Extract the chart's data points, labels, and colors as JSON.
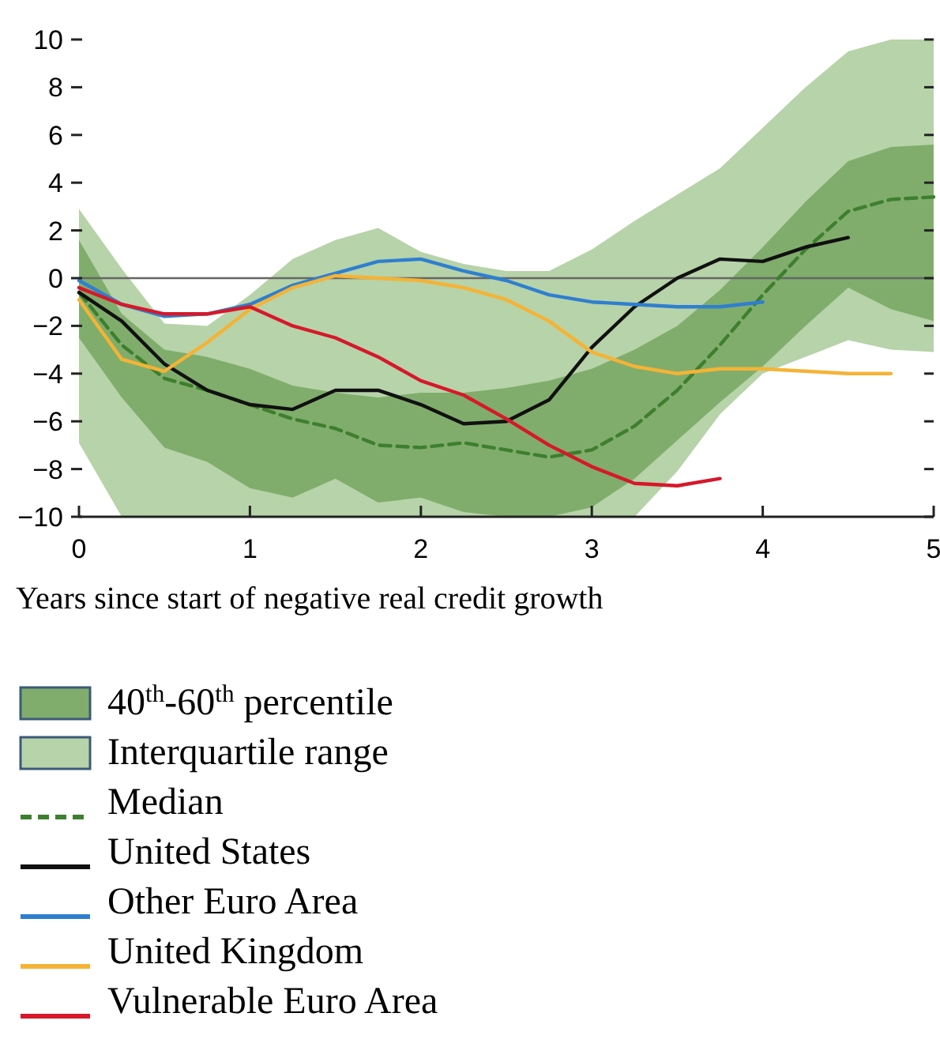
{
  "chart_data": {
    "type": "line",
    "xlabel": "Years since start of negative real credit growth",
    "x": [
      0,
      0.25,
      0.5,
      0.75,
      1,
      1.25,
      1.5,
      1.75,
      2,
      2.25,
      2.5,
      2.75,
      3,
      3.25,
      3.5,
      3.75,
      4,
      4.25,
      4.5,
      4.75,
      5
    ],
    "xlim": [
      0,
      5
    ],
    "xticks": [
      0,
      1,
      2,
      3,
      4,
      5
    ],
    "ylim": [
      -10,
      10
    ],
    "yticks": [
      {
        "value": -10,
        "label": "−10"
      },
      {
        "value": -8,
        "label": "−8"
      },
      {
        "value": -6,
        "label": "−6"
      },
      {
        "value": -4,
        "label": "−4"
      },
      {
        "value": -2,
        "label": "−2"
      },
      0,
      2,
      4,
      6,
      8,
      10
    ],
    "series": [
      {
        "name": "40$^{th}$-60$^{th}$ percentile",
        "color": "#80ad6c",
        "values": [
          null,
          null,
          null,
          null,
          null,
          null,
          null,
          null,
          null,
          null,
          null,
          null,
          null,
          null,
          null,
          null,
          null,
          null,
          null,
          null,
          null
        ],
        "lower": [
          -2.5,
          -5,
          -7.1,
          -7.7,
          -8.8,
          -9.2,
          -8.4,
          -9.4,
          -9.2,
          -9.8,
          -10,
          -10,
          -9.6,
          -8.4,
          -6.8,
          -5.2,
          -3.7,
          -2,
          -0.4,
          -1.3,
          -1.8
        ],
        "upper": [
          1.6,
          -1.5,
          -3.0,
          -3.3,
          -3.8,
          -4.5,
          -4.8,
          -5.0,
          -4.8,
          -4.8,
          -4.6,
          -4.3,
          -3.8,
          -3.0,
          -2.0,
          -0.5,
          1.3,
          3.2,
          4.9,
          5.5,
          5.6
        ]
      },
      {
        "name": "Interquartile range",
        "color": "#b7d3a9",
        "values": [
          null,
          null,
          null,
          null,
          null,
          null,
          null,
          null,
          null,
          null,
          null,
          null,
          null,
          null,
          null,
          null,
          null,
          null,
          null,
          null,
          null
        ],
        "lower": [
          -6.9,
          -10,
          -10,
          -10,
          -10,
          -10,
          -10,
          -10,
          -10,
          -10,
          -10,
          -10,
          -10,
          -10,
          -8.1,
          -5.7,
          -4.0,
          -3.3,
          -2.6,
          -3.0,
          -3.1
        ],
        "upper": [
          2.9,
          0.4,
          -1.9,
          -2.0,
          -0.7,
          0.8,
          1.6,
          2.1,
          1.1,
          0.6,
          0.3,
          0.3,
          1.2,
          2.4,
          3.5,
          4.6,
          6.3,
          8,
          9.5,
          10,
          10
        ]
      },
      {
        "name": "Median",
        "color": "#3d7f2e",
        "line_style": "dashed",
        "values": [
          -0.6,
          -2.8,
          -4.2,
          -4.7,
          -5.3,
          -5.9,
          -6.3,
          -7.0,
          -7.1,
          -6.9,
          -7.2,
          -7.5,
          -7.2,
          -6.2,
          -4.7,
          -2.8,
          -0.7,
          1.2,
          2.8,
          3.3,
          3.4
        ]
      },
      {
        "name": "United States",
        "color": "#111111",
        "x": [
          0,
          0.25,
          0.5,
          0.75,
          1,
          1.25,
          1.5,
          1.75,
          2,
          2.25,
          2.5,
          2.75,
          3,
          3.25,
          3.5,
          3.75,
          4,
          4.25,
          4.5
        ],
        "values": [
          -0.6,
          -1.8,
          -3.6,
          -4.7,
          -5.3,
          -5.5,
          -4.7,
          -4.7,
          -5.3,
          -6.1,
          -6.0,
          -5.1,
          -2.9,
          -1.2,
          0,
          0.8,
          0.7,
          1.3,
          1.7
        ]
      },
      {
        "name": "Other Euro Area",
        "color": "#2f7fd0",
        "x": [
          0,
          0.25,
          0.5,
          0.75,
          1,
          1.25,
          1.5,
          1.75,
          2,
          2.25,
          2.5,
          2.75,
          3,
          3.25,
          3.5,
          3.75,
          4
        ],
        "values": [
          -0.1,
          -1.1,
          -1.6,
          -1.5,
          -1.1,
          -0.3,
          0.2,
          0.7,
          0.8,
          0.3,
          -0.1,
          -0.7,
          -1.0,
          -1.1,
          -1.2,
          -1.2,
          -1.0
        ]
      },
      {
        "name": "United Kingdom",
        "color": "#f5b335",
        "x": [
          0,
          0.25,
          0.5,
          0.75,
          1,
          1.25,
          1.5,
          1.75,
          2,
          2.25,
          2.5,
          2.75,
          3,
          3.25,
          3.5,
          3.75,
          4,
          4.25,
          4.5,
          4.75
        ],
        "values": [
          -0.9,
          -3.4,
          -3.9,
          -2.7,
          -1.3,
          -0.4,
          0.1,
          0.0,
          -0.1,
          -0.4,
          -0.9,
          -1.8,
          -3.1,
          -3.7,
          -4.0,
          -3.8,
          -3.8,
          -3.9,
          -4.0,
          -4.0
        ]
      },
      {
        "name": "Vulnerable Euro Area",
        "color": "#d7182a",
        "x": [
          0,
          0.25,
          0.5,
          0.75,
          1,
          1.25,
          1.5,
          1.75,
          2,
          2.25,
          2.5,
          2.75,
          3,
          3.25,
          3.5,
          3.75
        ],
        "values": [
          -0.4,
          -1.1,
          -1.5,
          -1.5,
          -1.2,
          -2.0,
          -2.5,
          -3.3,
          -4.3,
          -4.9,
          -5.9,
          -7.0,
          -7.9,
          -8.6,
          -8.7,
          -8.4
        ]
      }
    ],
    "ref_lines": [
      {
        "axis": "y",
        "value": 0,
        "color": "#666666"
      }
    ],
    "legend": "bottom"
  }
}
